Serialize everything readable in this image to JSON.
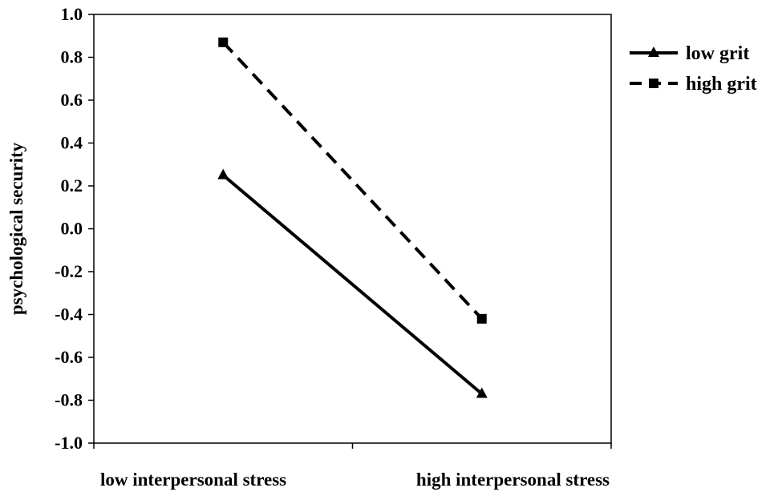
{
  "chart_data": {
    "type": "line",
    "title": "",
    "xlabel": "",
    "ylabel": "psychological security",
    "categories": [
      "low interpersonal stress",
      "high interpersonal stress"
    ],
    "ylim": [
      -1.0,
      1.0
    ],
    "yticks": [
      "1.0",
      "0.8",
      "0.6",
      "0.4",
      "0.2",
      "0.0",
      "-0.2",
      "-0.4",
      "-0.6",
      "-0.8",
      "-1.0"
    ],
    "ytick_values": [
      1.0,
      0.8,
      0.6,
      0.4,
      0.2,
      0.0,
      -0.2,
      -0.4,
      -0.6,
      -0.8,
      -1.0
    ],
    "grid": false,
    "legend_position": "top-right",
    "series": [
      {
        "name": "low grit",
        "values": [
          0.25,
          -0.77
        ],
        "style": "solid",
        "marker": "triangle",
        "color": "#000000"
      },
      {
        "name": "high grit",
        "values": [
          0.87,
          -0.42
        ],
        "style": "dashed",
        "marker": "square",
        "color": "#000000"
      }
    ]
  }
}
